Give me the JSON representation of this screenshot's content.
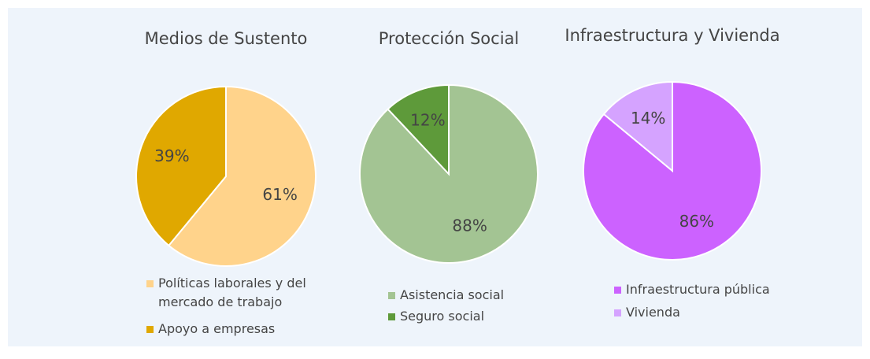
{
  "chart_data": [
    {
      "type": "pie",
      "title": "Medios de Sustento",
      "categories": [
        "Políticas laborales y del mercado de trabajo",
        "Apoyo a empresas"
      ],
      "values": [
        61,
        39
      ],
      "value_labels": [
        "61%",
        "39%"
      ],
      "colors": [
        "#ffd38b",
        "#e0a800"
      ]
    },
    {
      "type": "pie",
      "title": "Protección Social",
      "categories": [
        "Asistencia social",
        "Seguro social"
      ],
      "values": [
        88,
        12
      ],
      "value_labels": [
        "88%",
        "12%"
      ],
      "colors": [
        "#a3c493",
        "#5e9a3a"
      ]
    },
    {
      "type": "pie",
      "title": "Infraestructura y Vivienda",
      "categories": [
        "Infraestructura pública",
        "Vivienda"
      ],
      "values": [
        86,
        14
      ],
      "value_labels": [
        "86%",
        "14%"
      ],
      "colors": [
        "#cc62ff",
        "#d5a3ff"
      ]
    }
  ]
}
